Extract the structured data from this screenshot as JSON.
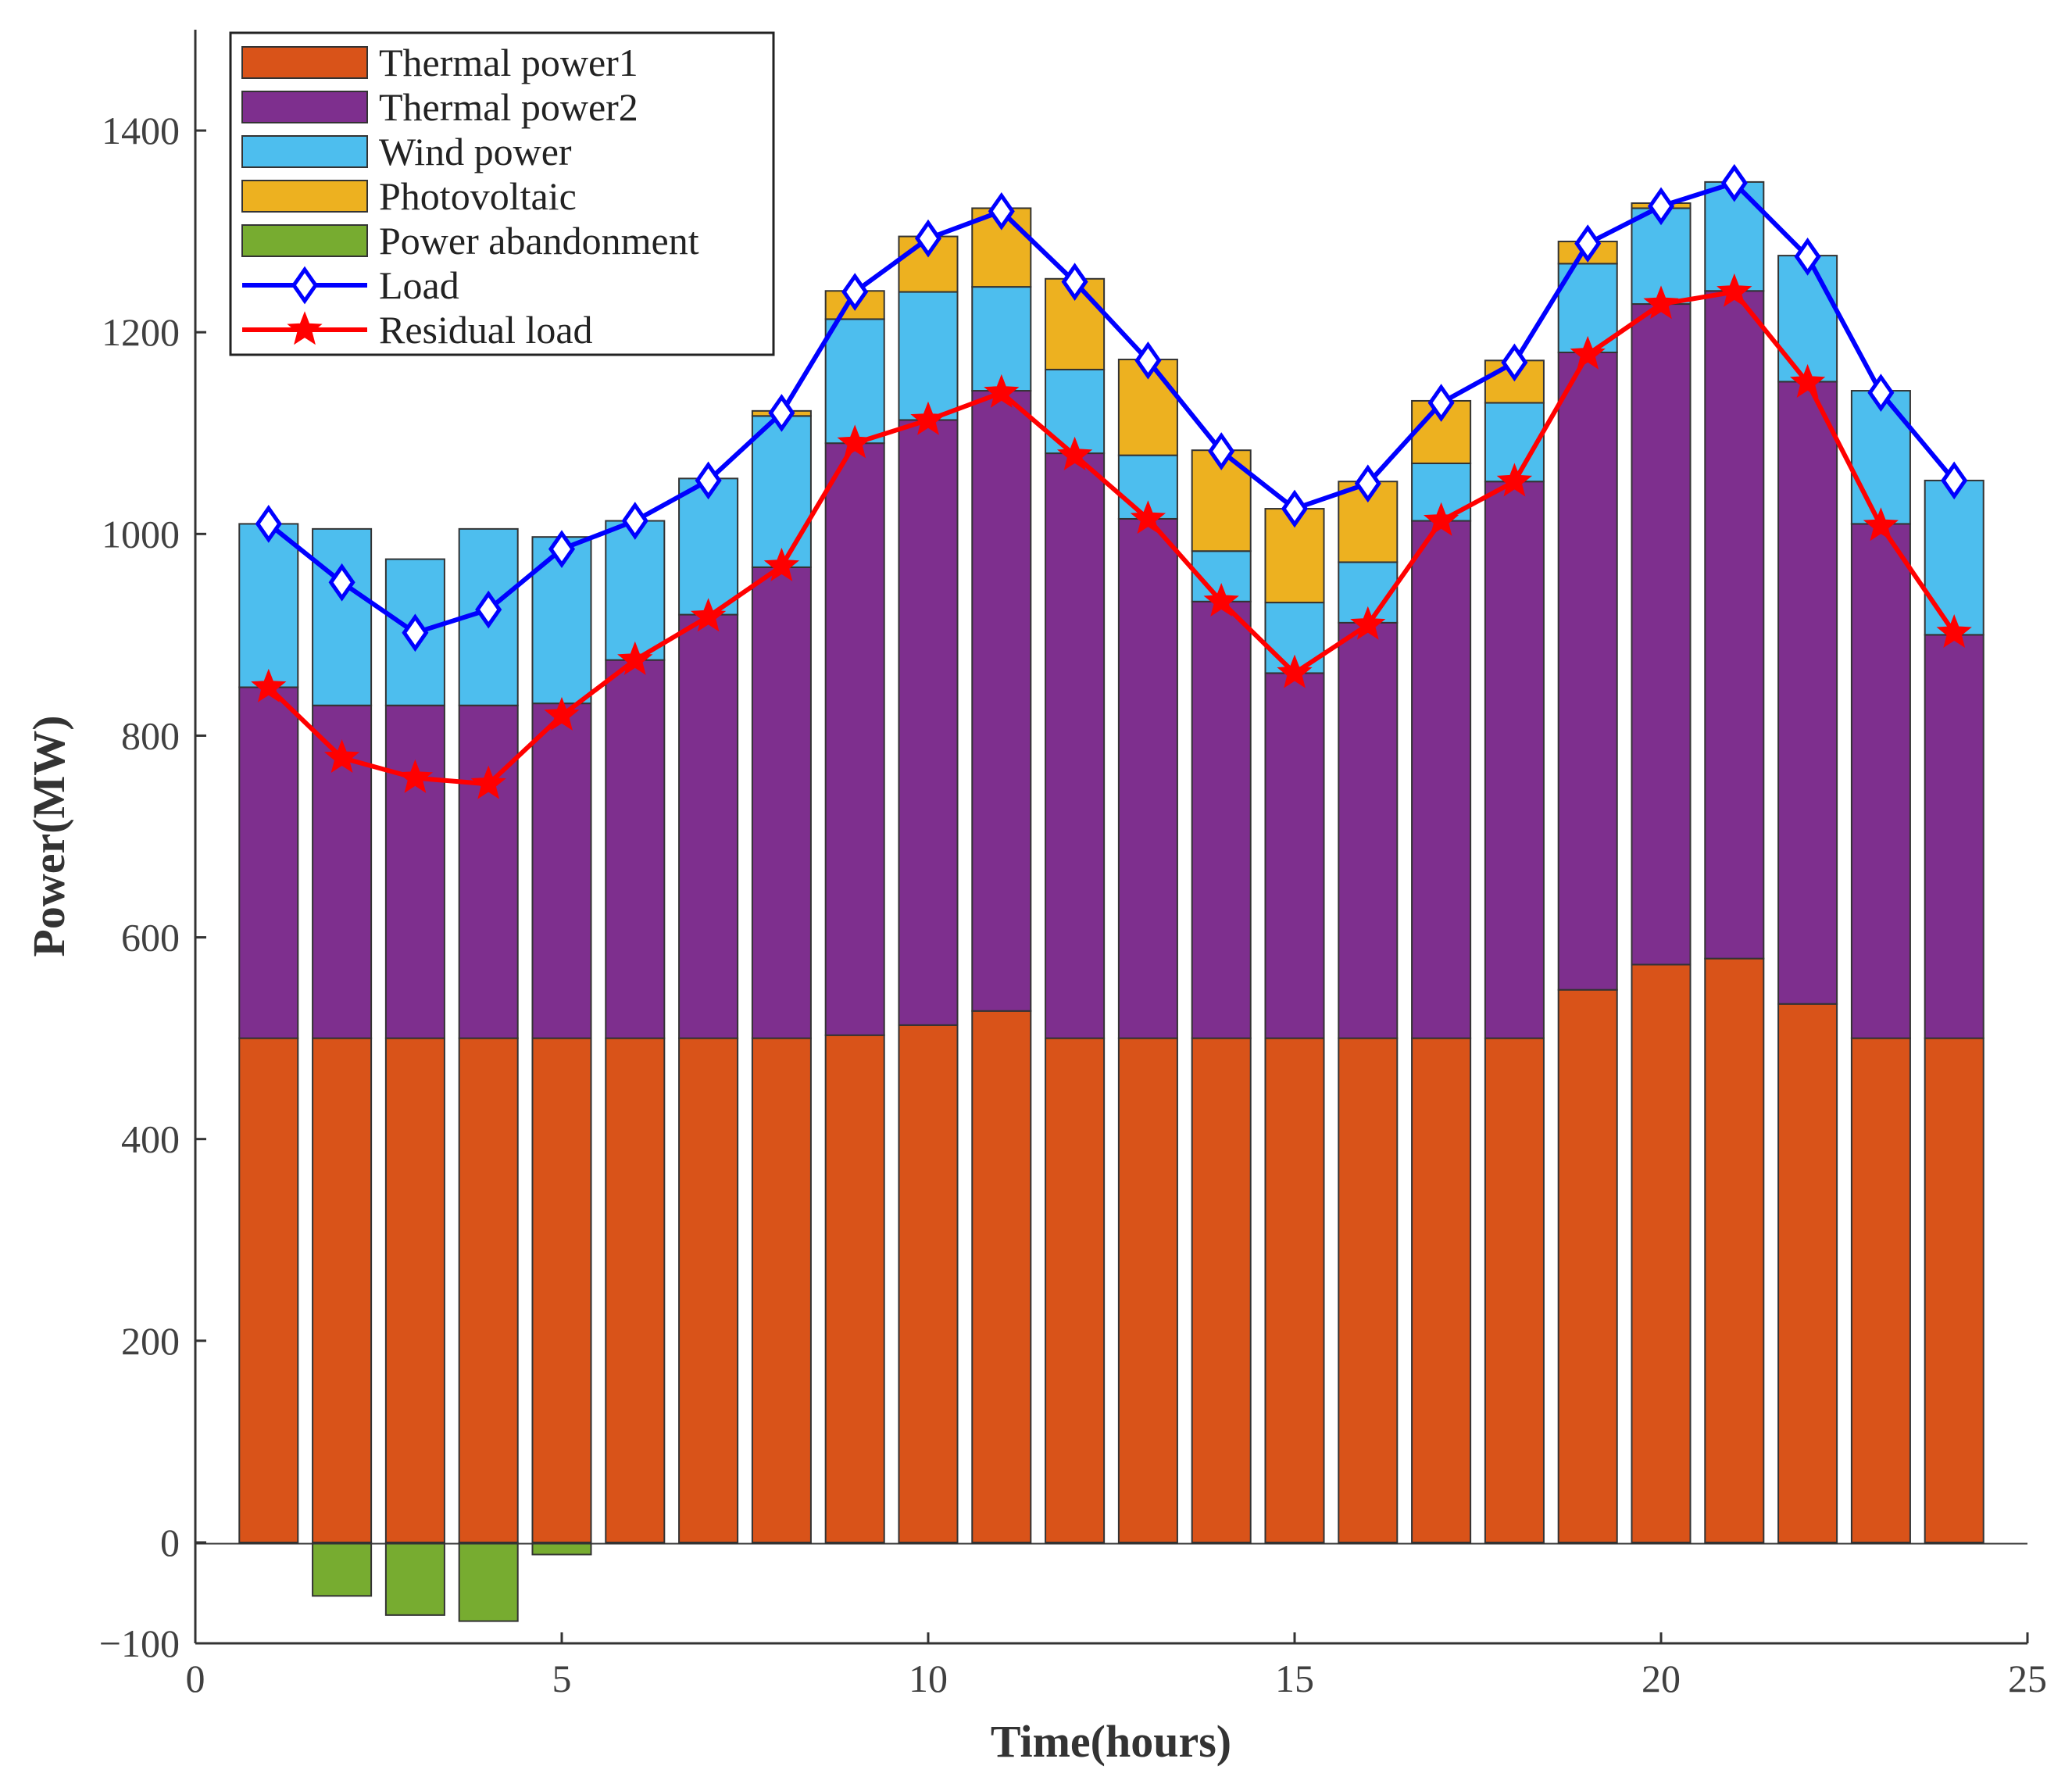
{
  "chart_data": {
    "type": "bar",
    "stacked": true,
    "title": "",
    "xlabel": "Time(hours)",
    "ylabel": "Power(MW)",
    "xlim": [
      0,
      25
    ],
    "ylim": [
      -100,
      1500
    ],
    "xticks": [
      0,
      5,
      10,
      15,
      20,
      25
    ],
    "yticks": [
      -100,
      0,
      200,
      400,
      600,
      800,
      1000,
      1200,
      1400
    ],
    "grid": false,
    "legend_position": "top-left",
    "x": [
      1,
      2,
      3,
      4,
      5,
      6,
      7,
      8,
      9,
      10,
      11,
      12,
      13,
      14,
      15,
      16,
      17,
      18,
      19,
      20,
      21,
      22,
      23,
      24
    ],
    "series": [
      {
        "name": "Thermal power1",
        "kind": "bar",
        "color": "#D95319",
        "values": [
          500,
          500,
          500,
          500,
          500,
          500,
          500,
          500,
          503,
          513,
          527,
          500,
          500,
          500,
          500,
          500,
          500,
          500,
          548,
          573,
          579,
          534,
          500,
          500
        ]
      },
      {
        "name": "Thermal power2",
        "kind": "bar",
        "color": "#7E2F8E",
        "values": [
          348,
          330,
          330,
          330,
          332,
          375,
          420,
          467,
          587,
          600,
          615,
          580,
          515,
          433,
          362,
          412,
          513,
          552,
          632,
          655,
          662,
          617,
          510,
          400
        ]
      },
      {
        "name": "Wind power",
        "kind": "bar",
        "color": "#4DBEEE",
        "values": [
          162,
          175,
          145,
          175,
          165,
          138,
          135,
          150,
          123,
          127,
          103,
          83,
          63,
          50,
          70,
          60,
          57,
          78,
          88,
          95,
          108,
          125,
          132,
          153
        ]
      },
      {
        "name": "Photovoltaic",
        "kind": "bar",
        "color": "#EDB120",
        "values": [
          0,
          0,
          0,
          0,
          0,
          0,
          0,
          5,
          28,
          55,
          78,
          90,
          95,
          100,
          93,
          80,
          62,
          42,
          22,
          5,
          0,
          0,
          0,
          0
        ]
      },
      {
        "name": "Power abandonment",
        "kind": "bar",
        "color": "#77AC30",
        "values": [
          0,
          -53,
          -72,
          -78,
          -12,
          0,
          0,
          0,
          0,
          0,
          0,
          0,
          0,
          0,
          0,
          0,
          0,
          0,
          0,
          0,
          0,
          0,
          0,
          0
        ]
      },
      {
        "name": "Load",
        "kind": "line",
        "marker": "diamond",
        "color": "#0000FF",
        "values": [
          1010,
          952,
          902,
          925,
          985,
          1013,
          1053,
          1120,
          1240,
          1293,
          1320,
          1250,
          1172,
          1082,
          1025,
          1050,
          1130,
          1170,
          1288,
          1325,
          1348,
          1275,
          1140,
          1053
        ]
      },
      {
        "name": "Residual load",
        "kind": "line",
        "marker": "star",
        "color": "#FF0000",
        "values": [
          848,
          778,
          758,
          752,
          820,
          875,
          918,
          968,
          1090,
          1113,
          1140,
          1078,
          1015,
          933,
          862,
          910,
          1013,
          1052,
          1178,
          1228,
          1240,
          1150,
          1008,
          902
        ]
      }
    ]
  }
}
